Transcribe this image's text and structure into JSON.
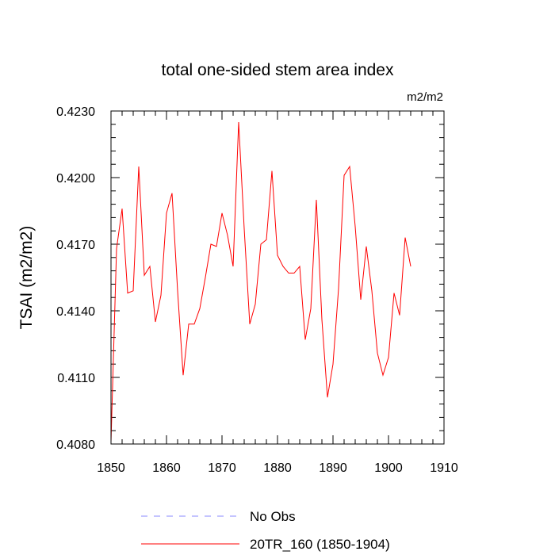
{
  "chart_data": {
    "type": "line",
    "title": "total one-sided stem area index",
    "units": "m2/m2",
    "xlabel": "",
    "ylabel": "TSAI  (m2/m2)",
    "xlim": [
      1850,
      1910
    ],
    "ylim": [
      0.408,
      0.423
    ],
    "x_ticks": [
      1850,
      1860,
      1870,
      1880,
      1890,
      1900,
      1910
    ],
    "x_tick_labels": [
      "1850",
      "1860",
      "1870",
      "1880",
      "1890",
      "1900",
      "1910"
    ],
    "y_ticks": [
      0.408,
      0.411,
      0.414,
      0.417,
      0.42,
      0.423
    ],
    "y_tick_labels": [
      "0.4080",
      "0.4110",
      "0.4140",
      "0.4170",
      "0.4200",
      "0.4230"
    ],
    "grid": false,
    "legend_position": "bottom",
    "colors": {
      "series": "#ff0000",
      "obs": "#8888ff"
    },
    "legend": [
      {
        "label": "No Obs",
        "style": "dashed",
        "color": "#8888ff"
      },
      {
        "label": "20TR_160 (1850-1904)",
        "style": "solid",
        "color": "#ff0000"
      }
    ],
    "series": [
      {
        "name": "20TR_160 (1850-1904)",
        "x": [
          1850,
          1851,
          1852,
          1853,
          1854,
          1855,
          1856,
          1857,
          1858,
          1859,
          1860,
          1861,
          1862,
          1863,
          1864,
          1865,
          1866,
          1867,
          1868,
          1869,
          1870,
          1871,
          1872,
          1873,
          1874,
          1875,
          1876,
          1877,
          1878,
          1879,
          1880,
          1881,
          1882,
          1883,
          1884,
          1885,
          1886,
          1887,
          1888,
          1889,
          1890,
          1891,
          1892,
          1893,
          1894,
          1895,
          1896,
          1897,
          1898,
          1899,
          1900,
          1901,
          1902,
          1903,
          1904
        ],
        "values": [
          0.4081,
          0.4168,
          0.4186,
          0.4148,
          0.4149,
          0.4205,
          0.4156,
          0.416,
          0.4135,
          0.4147,
          0.4184,
          0.4193,
          0.4149,
          0.4111,
          0.4134,
          0.4134,
          0.4141,
          0.4155,
          0.417,
          0.4169,
          0.4184,
          0.4174,
          0.416,
          0.4225,
          0.4177,
          0.4134,
          0.4143,
          0.417,
          0.4172,
          0.4203,
          0.4165,
          0.416,
          0.4157,
          0.4157,
          0.416,
          0.4127,
          0.4141,
          0.419,
          0.4136,
          0.4101,
          0.4116,
          0.415,
          0.4201,
          0.4205,
          0.4178,
          0.4145,
          0.4169,
          0.4149,
          0.4121,
          0.4111,
          0.4119,
          0.4148,
          0.4138,
          0.4173,
          0.416
        ]
      }
    ]
  }
}
